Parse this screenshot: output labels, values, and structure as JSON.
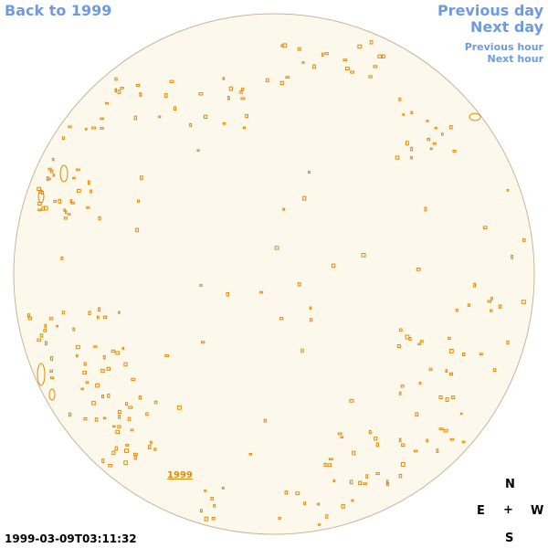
{
  "nav": {
    "back": "Back to 1999",
    "previous_day": "Previous day",
    "next_day": "Next day",
    "previous_hour": "Previous hour",
    "next_hour": "Next hour"
  },
  "map": {
    "year_label": "1999"
  },
  "compass": {
    "north": "N",
    "east": "E",
    "center": "+",
    "west": "W",
    "south": "S"
  },
  "timestamp": "1999-03-09T03:11:32",
  "colors": {
    "link": "#6f9ae0",
    "accent": "#e58a00",
    "disk_fill": "#fdf8ec",
    "disk_border": "#c8b49a"
  }
}
